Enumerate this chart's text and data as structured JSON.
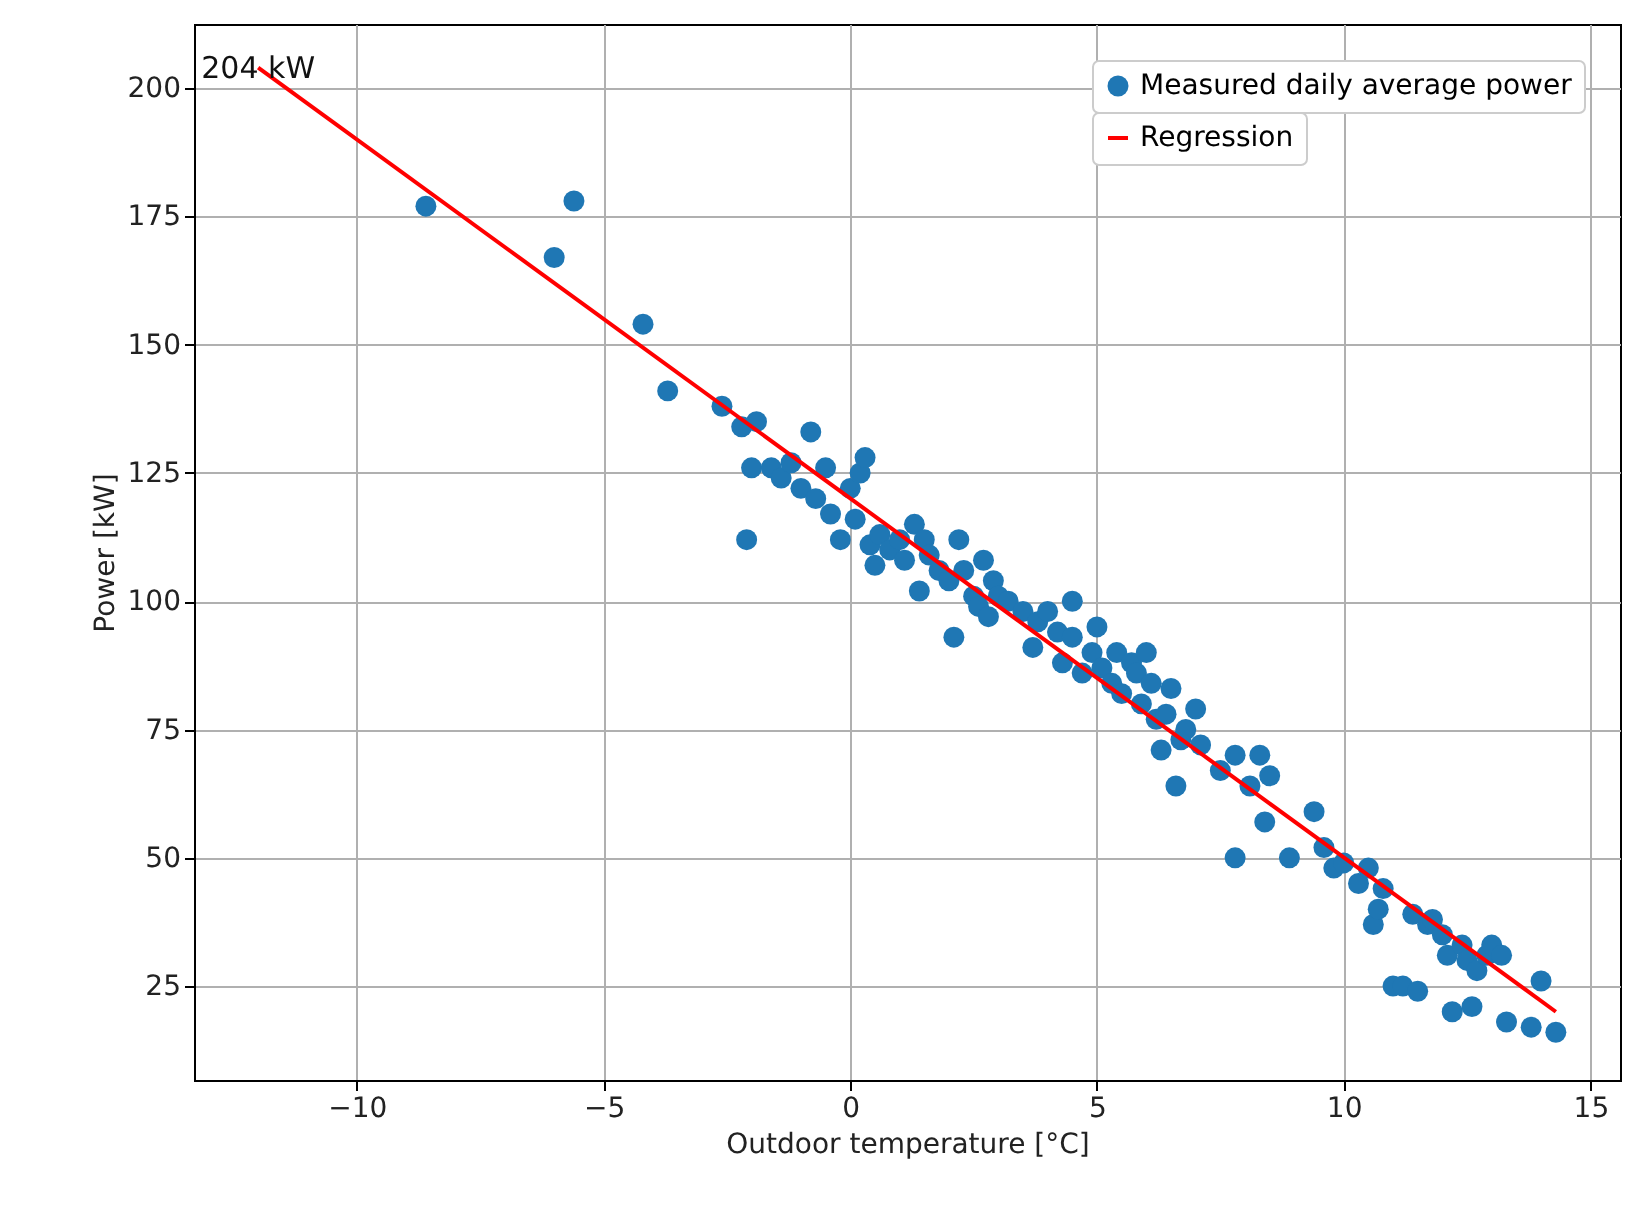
{
  "chart_data": {
    "type": "scatter",
    "xlabel": "Outdoor temperature [°C]",
    "ylabel": "Power [kW]",
    "xlim": [
      -13.3,
      15.6
    ],
    "xticks": [
      {
        "value": -10,
        "label": "−10"
      },
      {
        "value": -5,
        "label": "−5"
      },
      0,
      5,
      10,
      15
    ],
    "ylim": [
      6.7,
      212.5
    ],
    "yticks": [
      25,
      50,
      75,
      100,
      125,
      150,
      175,
      200
    ],
    "grid": true,
    "legend": "top right",
    "annotations": [
      {
        "text": "204 kW",
        "x": -12,
        "y": 204
      }
    ],
    "series": [
      {
        "name": "Measured daily average power",
        "marker": "circle",
        "color": "#1f77b4",
        "x": [
          -8.6,
          -6,
          -5.6,
          -4.2,
          -3.7,
          -2.6,
          -2.2,
          -1.9,
          -2.1,
          -2,
          -1.6,
          -1.4,
          -1.2,
          -0.8,
          -1,
          -0.7,
          -0.5,
          -0.4,
          -0.2,
          0,
          0.1,
          0.2,
          0.3,
          0.4,
          0.5,
          0.6,
          0.8,
          1,
          1.1,
          1.3,
          1.4,
          1.5,
          1.6,
          1.8,
          2,
          2.1,
          2.2,
          2.3,
          2.5,
          2.6,
          2.7,
          2.8,
          2.9,
          3,
          3.2,
          3.5,
          3.7,
          3.8,
          4,
          4.2,
          4.3,
          4.5,
          4.5,
          4.7,
          4.9,
          5,
          5.1,
          5.3,
          5.4,
          5.5,
          5.7,
          5.8,
          5.9,
          6,
          6.1,
          6.2,
          6.3,
          6.4,
          6.5,
          6.6,
          6.7,
          6.8,
          7,
          7.1,
          7.5,
          7.8,
          7.8,
          8.1,
          8.3,
          8.4,
          8.5,
          8.9,
          9.4,
          9.6,
          9.8,
          10,
          10.3,
          10.5,
          10.6,
          10.7,
          10.8,
          11,
          11.2,
          11.4,
          11.5,
          11.7,
          11.8,
          12,
          12.1,
          12.2,
          12.4,
          12.5,
          12.6,
          12.7,
          12.9,
          13,
          13.2,
          13.3,
          13.8,
          14,
          14.3
        ],
        "values": [
          177,
          167,
          178,
          154,
          141,
          138,
          134,
          135,
          112,
          126,
          126,
          124,
          127,
          133,
          122,
          120,
          126,
          117,
          112,
          122,
          116,
          125,
          128,
          111,
          107,
          113,
          110,
          112,
          108,
          115,
          102,
          112,
          109,
          106,
          104,
          93,
          112,
          106,
          101,
          99,
          108,
          97,
          104,
          101,
          100,
          98,
          91,
          96,
          98,
          94,
          88,
          100,
          93,
          86,
          90,
          95,
          87,
          84,
          90,
          82,
          88,
          86,
          80,
          90,
          84,
          77,
          71,
          78,
          83,
          64,
          73,
          75,
          79,
          72,
          67,
          70,
          50,
          64,
          70,
          57,
          66,
          50,
          59,
          52,
          48,
          49,
          45,
          48,
          37,
          40,
          44,
          25,
          25,
          39,
          24,
          37,
          38,
          35,
          31,
          20,
          33,
          30,
          21,
          28,
          31,
          33,
          31,
          18,
          17,
          26,
          16
        ]
      },
      {
        "name": "Regression",
        "type": "line",
        "color": "#ff0000",
        "x": [
          -12,
          14.3
        ],
        "values": [
          204,
          20
        ]
      }
    ]
  }
}
